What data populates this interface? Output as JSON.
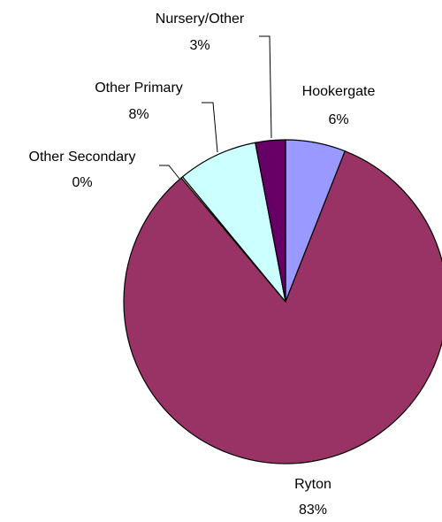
{
  "chart_data": {
    "type": "pie",
    "title": "",
    "series": [
      {
        "values": [
          {
            "label": "Hookergate",
            "value": 6,
            "value_label": "6%",
            "color": "#9999ff"
          },
          {
            "label": "Ryton",
            "value": 83,
            "value_label": "83%",
            "color": "#993366"
          },
          {
            "label": "Other Secondary",
            "value": 0,
            "value_label": "0%",
            "color": "#ffffcc"
          },
          {
            "label": "Other Primary",
            "value": 8,
            "value_label": "8%",
            "color": "#ccffff"
          },
          {
            "label": "Nursery/Other",
            "value": 3,
            "value_label": "3%",
            "color": "#660066"
          }
        ]
      }
    ],
    "legend": "none",
    "label_placement": "outside-with-leader-lines"
  }
}
